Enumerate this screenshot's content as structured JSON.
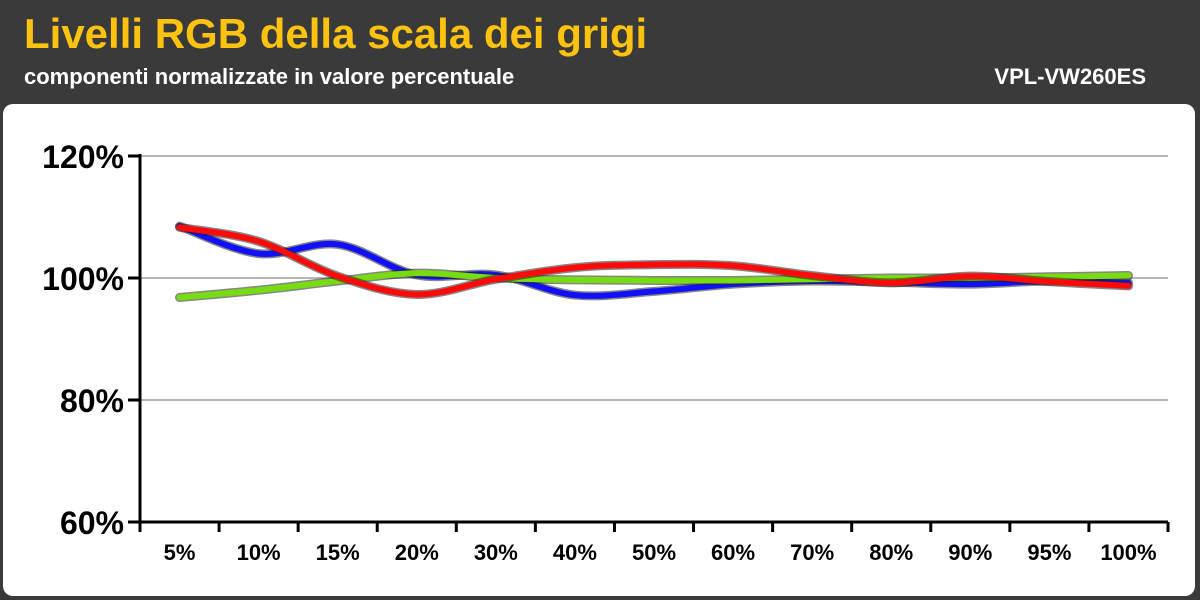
{
  "header": {
    "title": "Livelli RGB della scala dei grigi",
    "subtitle": "componenti normalizzate in valore percentuale",
    "model": "VPL-VW260ES"
  },
  "colors": {
    "header_bg": "#3a3a3a",
    "title": "#ffc20e",
    "blue": "#1010ff",
    "green": "#77dd11",
    "red": "#ff0a0a"
  },
  "chart_data": {
    "type": "line",
    "title": "Livelli RGB della scala dei grigi",
    "subtitle": "componenti normalizzate in valore percentuale",
    "categories": [
      "5%",
      "10%",
      "15%",
      "20%",
      "30%",
      "40%",
      "50%",
      "60%",
      "70%",
      "80%",
      "90%",
      "95%",
      "100%"
    ],
    "ylim": [
      60,
      120
    ],
    "yticks": [
      60,
      80,
      100,
      120
    ],
    "ytick_labels": [
      "60%",
      "80%",
      "100%",
      "120%"
    ],
    "grid": true,
    "series": [
      {
        "color": "#1010ff",
        "values": [
          108.5,
          104,
          105.5,
          100.5,
          100.5,
          97.2,
          97.8,
          99,
          99.5,
          99.3,
          99,
          99.5,
          99.2
        ]
      },
      {
        "color": "#77dd11",
        "values": [
          96.8,
          98,
          99.5,
          100.8,
          100,
          99.7,
          99.6,
          99.6,
          99.8,
          100,
          100,
          100.2,
          100.4
        ]
      },
      {
        "color": "#ff0a0a",
        "values": [
          108.3,
          106,
          100.3,
          97.3,
          99.8,
          101.7,
          102.2,
          102,
          100.4,
          99.2,
          100.3,
          99.4,
          98.7
        ]
      }
    ]
  }
}
